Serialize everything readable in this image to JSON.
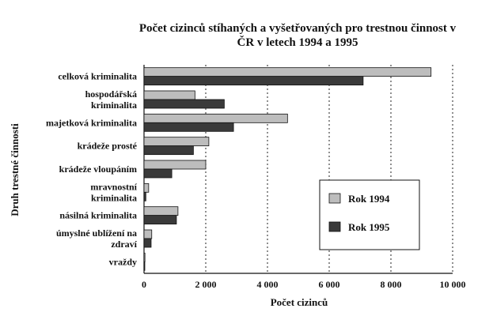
{
  "chart_data": {
    "type": "bar",
    "orientation": "horizontal",
    "title_lines": [
      "Počet cizinců stíhaných a vyšetřovaných pro trestnou činnost v",
      "ČR v letech 1994 a 1995"
    ],
    "xlabel": "Počet cizinců",
    "ylabel": "Druh trestné činnosti",
    "xlim": [
      0,
      10000
    ],
    "xticks": [
      0,
      2000,
      4000,
      6000,
      8000,
      10000
    ],
    "xtick_labels": [
      "0",
      "2 000",
      "4 000",
      "6 000",
      "8 000",
      "10 000"
    ],
    "grid": "vertical dashed",
    "legend_position": "right",
    "categories": [
      [
        "celková kriminalita"
      ],
      [
        "hospodářská",
        "kriminalita"
      ],
      [
        "majetková kriminalita"
      ],
      [
        "krádeže prosté"
      ],
      [
        "krádeže vloupáním"
      ],
      [
        "mravnostní",
        "kriminalita"
      ],
      [
        "násilná kriminalita"
      ],
      [
        "úmyslné ublížení na",
        "zdraví"
      ],
      [
        "vraždy"
      ]
    ],
    "series": [
      {
        "name": "Rok 1994",
        "color": "#bdbdbd",
        "values": [
          9300,
          1650,
          4650,
          2100,
          2000,
          150,
          1100,
          250,
          30
        ]
      },
      {
        "name": "Rok 1995",
        "color": "#3a3a3a",
        "values": [
          7100,
          2600,
          2900,
          1600,
          900,
          60,
          1050,
          230,
          20
        ]
      }
    ]
  }
}
